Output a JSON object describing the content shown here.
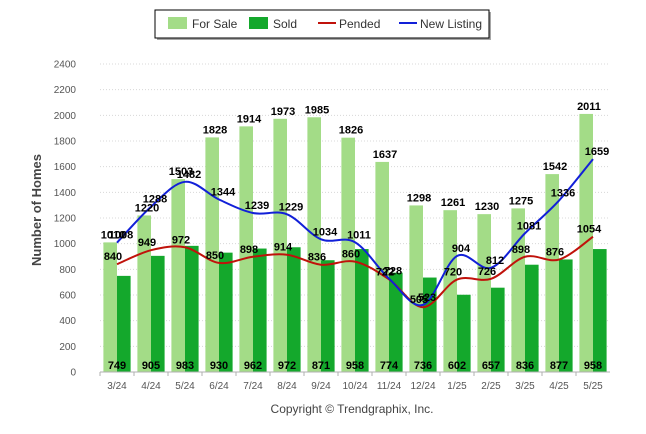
{
  "chart_data": {
    "type": "bar",
    "categories": [
      "3/24",
      "4/24",
      "5/24",
      "6/24",
      "7/24",
      "8/24",
      "9/24",
      "10/24",
      "11/24",
      "12/24",
      "1/25",
      "2/25",
      "3/25",
      "4/25",
      "5/25"
    ],
    "series": [
      {
        "name": "For Sale",
        "kind": "bar",
        "color": "#a3dc87",
        "values": [
          1010,
          1220,
          1503,
          1828,
          1914,
          1973,
          1985,
          1826,
          1637,
          1298,
          1261,
          1230,
          1275,
          1542,
          2011
        ]
      },
      {
        "name": "Sold",
        "kind": "bar",
        "color": "#14a82c",
        "values": [
          749,
          905,
          983,
          930,
          962,
          972,
          871,
          958,
          774,
          736,
          602,
          657,
          836,
          877,
          958
        ]
      },
      {
        "name": "Pended",
        "kind": "line",
        "color": "#c0120b",
        "values": [
          840,
          949,
          972,
          850,
          898,
          914,
          836,
          860,
          722,
          505,
          720,
          726,
          898,
          876,
          1054
        ]
      },
      {
        "name": "New Listing",
        "kind": "line",
        "color": "#1220d8",
        "values": [
          1008,
          1288,
          1482,
          1344,
          1239,
          1229,
          1034,
          1011,
          728,
          523,
          904,
          812,
          1081,
          1336,
          1659
        ]
      }
    ],
    "ylabel": "Number of Homes",
    "xlabel": "",
    "ylim": [
      0,
      2400
    ],
    "yticks": [
      0,
      200,
      400,
      600,
      800,
      1000,
      1200,
      1400,
      1600,
      1800,
      2000,
      2200,
      2400
    ],
    "grid": true,
    "legend": "top-center"
  },
  "copyright": "Copyright © Trendgraphix, Inc."
}
